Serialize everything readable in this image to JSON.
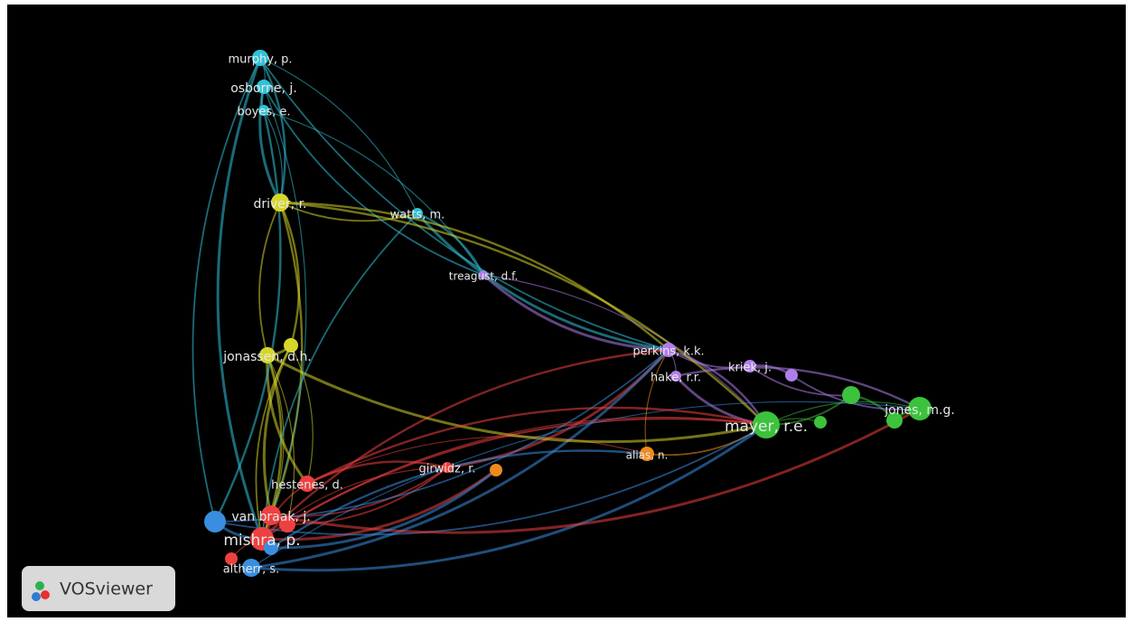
{
  "nodes": [
    {
      "label": "murphy, p."
    },
    {
      "label": "osborne, j."
    },
    {
      "label": "boyes, e."
    },
    {
      "label": "driver, r."
    },
    {
      "label": "watts, m."
    },
    {
      "label": "treagust, d.f."
    },
    {
      "label": "jonassen, d.h."
    },
    {
      "label": "perkins, k.k."
    },
    {
      "label": "hake, r.r."
    },
    {
      "label": "kriek, j."
    },
    {
      "label": "mayer, r.e."
    },
    {
      "label": "jones, m.g."
    },
    {
      "label": "alias, n."
    },
    {
      "label": "girwidz, r."
    },
    {
      "label": "hestenes, d."
    },
    {
      "label": "van braak, j."
    },
    {
      "label": "mishra, p."
    },
    {
      "label": "altherr, s."
    }
  ],
  "logo": {
    "text": "VOSviewer"
  }
}
